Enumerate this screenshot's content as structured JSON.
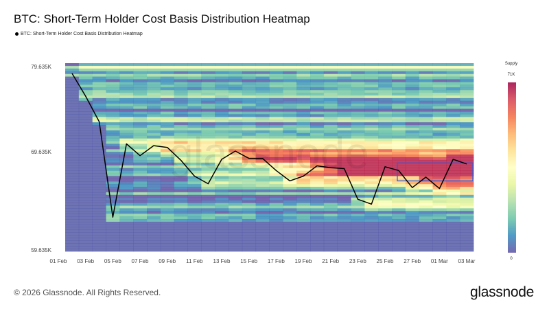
{
  "title": "BTC: Short-Term Holder Cost Basis Distribution Heatmap",
  "footer": "© 2026 Glassnode. All Rights Reserved.",
  "brand": "glassnode",
  "watermark": "glassnode",
  "chart_data": {
    "type": "heatmap",
    "title": "BTC: Short-Term Holder Cost Basis Distribution Heatmap",
    "legend": [
      "BTC: Short-Term Holder Cost Basis Distribution Heatmap"
    ],
    "legend_placement": "top-left",
    "y_scale": "log",
    "ylim": [
      59635,
      80300
    ],
    "y_ticks": [
      "79.635K",
      "69.635K",
      "59.635K"
    ],
    "y_tick_values": [
      79635,
      69635,
      59635
    ],
    "x_ticks": [
      "01 Feb",
      "03 Feb",
      "05 Feb",
      "07 Feb",
      "09 Feb",
      "11 Feb",
      "13 Feb",
      "15 Feb",
      "17 Feb",
      "19 Feb",
      "21 Feb",
      "23 Feb",
      "25 Feb",
      "27 Feb",
      "01 Mar",
      "03 Mar"
    ],
    "colorbar": {
      "label": "Supply",
      "max_label": "71K",
      "min_label": "0",
      "range": [
        0,
        71000
      ],
      "colors": [
        "#5e4fa2",
        "#3288bd",
        "#66c2a5",
        "#abdda4",
        "#e6f598",
        "#ffffbf",
        "#fee08b",
        "#fdae61",
        "#f46d43",
        "#d53e4f",
        "#9e0142"
      ]
    },
    "price_series": {
      "color": "#000000",
      "dates": [
        "02 Feb",
        "03 Feb",
        "04 Feb",
        "05 Feb",
        "06 Feb",
        "07 Feb",
        "08 Feb",
        "09 Feb",
        "10 Feb",
        "11 Feb",
        "12 Feb",
        "13 Feb",
        "14 Feb",
        "15 Feb",
        "16 Feb",
        "17 Feb",
        "18 Feb",
        "19 Feb",
        "20 Feb",
        "21 Feb",
        "22 Feb",
        "23 Feb",
        "24 Feb",
        "25 Feb",
        "26 Feb",
        "27 Feb",
        "28 Feb",
        "01 Mar",
        "02 Mar",
        "03 Mar"
      ],
      "values": [
        78800,
        76000,
        73000,
        62800,
        70500,
        69200,
        70300,
        70100,
        68700,
        67000,
        66200,
        68800,
        69700,
        68900,
        68900,
        67600,
        66500,
        67000,
        68100,
        67900,
        67800,
        64600,
        64100,
        68000,
        67600,
        65800,
        66900,
        65700,
        68800,
        68300
      ]
    },
    "highlight_box": {
      "dates": [
        "26 Feb",
        "03 Mar"
      ],
      "price_range": [
        66500,
        68400
      ],
      "color": "#2f5be0"
    }
  }
}
